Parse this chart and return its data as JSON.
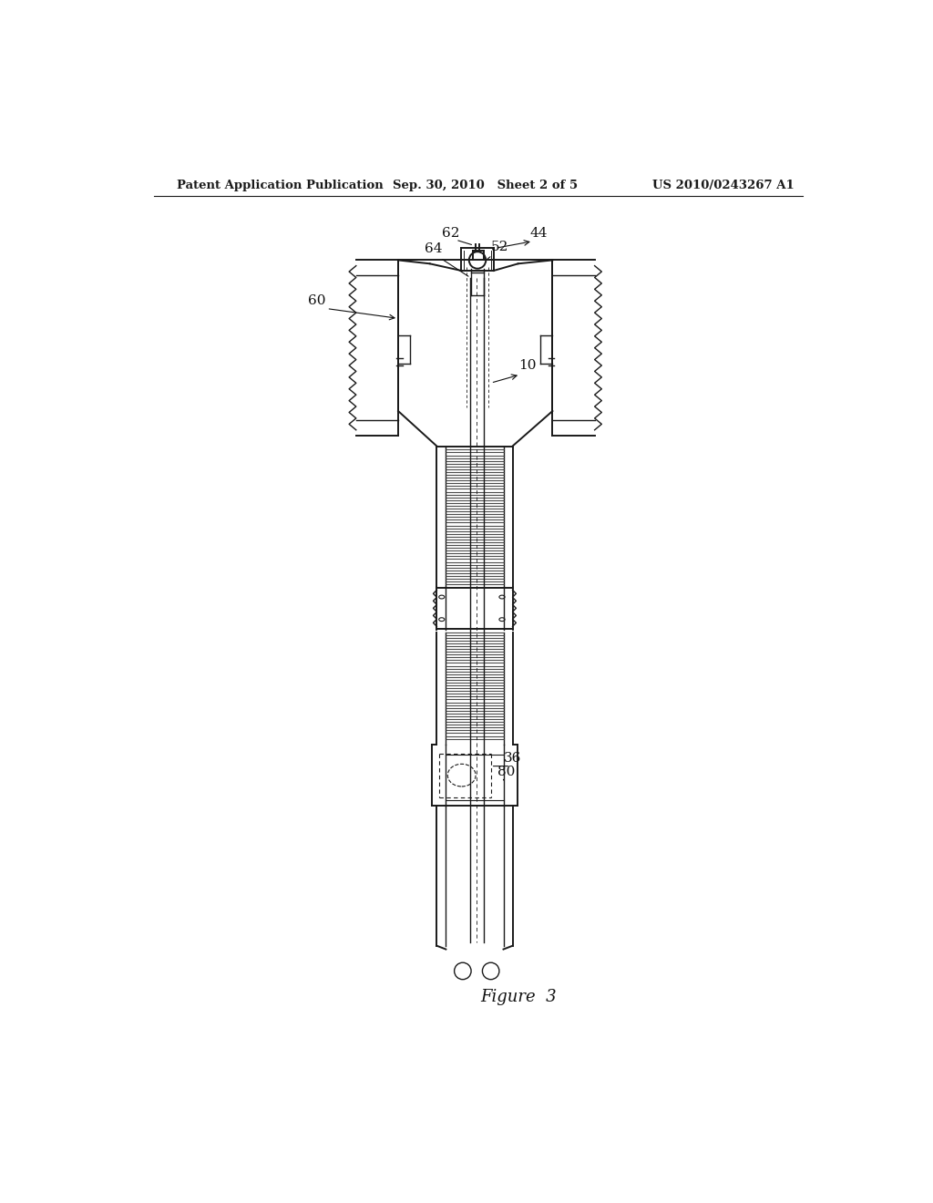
{
  "background_color": "#ffffff",
  "header_left": "Patent Application Publication",
  "header_center": "Sep. 30, 2010   Sheet 2 of 5",
  "header_right": "US 2010/0243267 A1",
  "figure_label": "Figure  3",
  "col": "#1a1a1a"
}
